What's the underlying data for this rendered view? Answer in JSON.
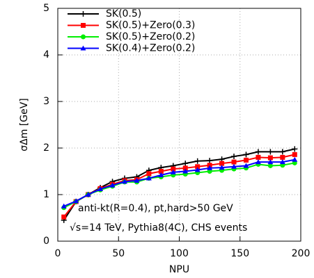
{
  "chart_data": {
    "type": "line",
    "x": [
      5,
      15,
      25,
      35,
      45,
      55,
      65,
      75,
      85,
      95,
      105,
      115,
      125,
      135,
      145,
      155,
      165,
      175,
      185,
      195
    ],
    "series": [
      {
        "name": "SK(0.5)",
        "color": "#000000",
        "marker": "plus",
        "values": [
          0.45,
          0.85,
          1.0,
          1.15,
          1.28,
          1.35,
          1.38,
          1.52,
          1.58,
          1.62,
          1.67,
          1.72,
          1.73,
          1.76,
          1.82,
          1.86,
          1.92,
          1.92,
          1.92,
          1.98
        ]
      },
      {
        "name": "SK(0.5)+Zero(0.3)",
        "color": "#ff0000",
        "marker": "square",
        "values": [
          0.52,
          0.85,
          1.0,
          1.13,
          1.22,
          1.3,
          1.32,
          1.45,
          1.5,
          1.55,
          1.57,
          1.6,
          1.63,
          1.67,
          1.7,
          1.74,
          1.8,
          1.79,
          1.8,
          1.86
        ]
      },
      {
        "name": "SK(0.5)+Zero(0.2)",
        "color": "#00ee00",
        "marker": "circle",
        "values": [
          0.72,
          0.85,
          1.0,
          1.1,
          1.18,
          1.27,
          1.27,
          1.35,
          1.38,
          1.42,
          1.44,
          1.47,
          1.5,
          1.52,
          1.55,
          1.57,
          1.65,
          1.62,
          1.63,
          1.68
        ]
      },
      {
        "name": "SK(0.4)+Zero(0.2)",
        "color": "#0000ff",
        "marker": "triangle",
        "values": [
          0.75,
          0.86,
          1.0,
          1.12,
          1.2,
          1.28,
          1.3,
          1.35,
          1.42,
          1.48,
          1.5,
          1.53,
          1.57,
          1.58,
          1.6,
          1.62,
          1.7,
          1.7,
          1.7,
          1.75
        ]
      }
    ],
    "xlabel": "NPU",
    "ylabel": "σΔm [GeV]",
    "annotations": [
      "anti-kt(R=0.4), pt,hard>50 GeV",
      "√s=14 TeV, Pythia8(4C), CHS events"
    ],
    "xlim": [
      0,
      200
    ],
    "ylim": [
      0,
      5
    ],
    "xticks": [
      0,
      50,
      100,
      150,
      200
    ],
    "yticks": [
      0,
      1,
      2,
      3,
      4,
      5
    ],
    "grid": true,
    "legend": "upper-left"
  }
}
